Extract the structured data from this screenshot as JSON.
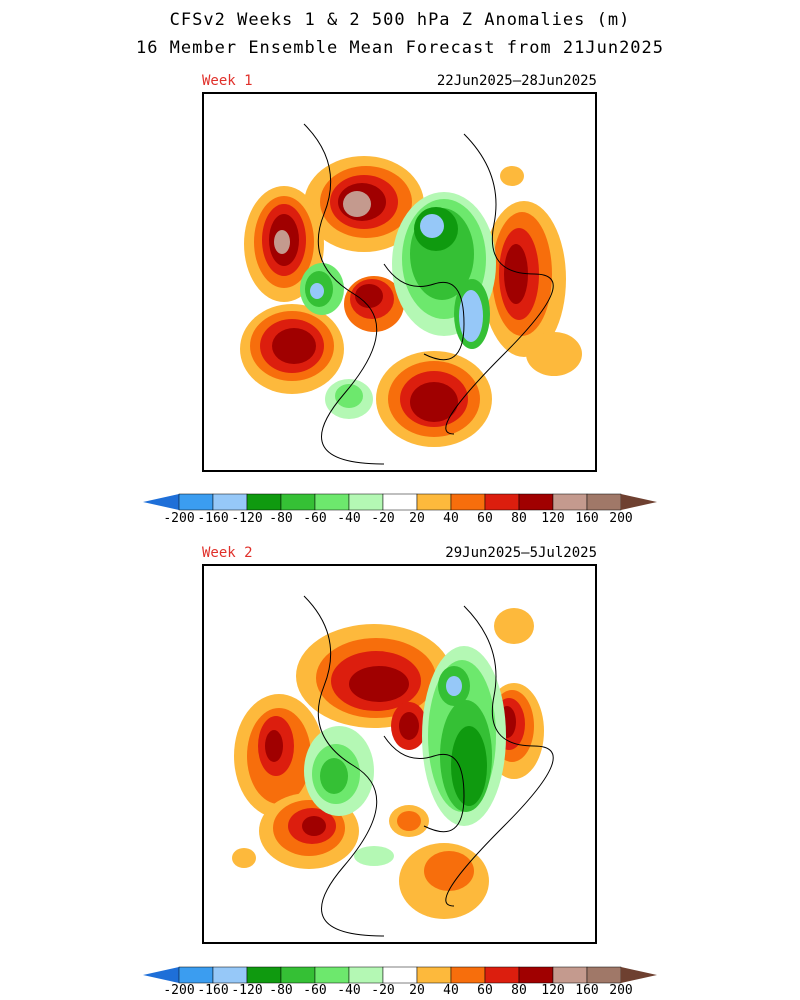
{
  "title": "CFSv2 Weeks 1 & 2 500 hPa Z Anomalies (m)",
  "subtitle": "16 Member Ensemble Mean Forecast from 21Jun2025",
  "panels": [
    {
      "week_label": "Week 1",
      "date_range": "22Jun2025–28Jun2025"
    },
    {
      "week_label": "Week 2",
      "date_range": "29Jun2025–5Jul2025"
    }
  ],
  "colorbar": {
    "labels": [
      "-200",
      "-160",
      "-120",
      "-80",
      "-60",
      "-40",
      "-20",
      "20",
      "40",
      "60",
      "80",
      "120",
      "160",
      "200"
    ],
    "colors": [
      "#1e6fd8",
      "#3b9df0",
      "#96c8f8",
      "#0f9a0f",
      "#35c035",
      "#6de86d",
      "#b4f8b4",
      "#ffffff",
      "#fdb93c",
      "#f76e0c",
      "#dc1e0e",
      "#a00000",
      "#c49a8e",
      "#a07868",
      "#6e4030"
    ]
  }
}
